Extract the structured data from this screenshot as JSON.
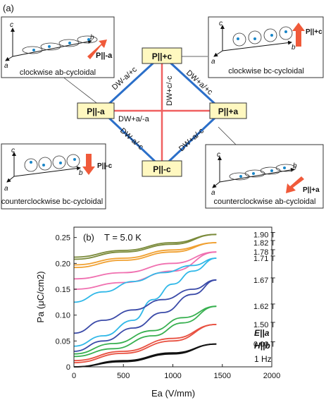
{
  "panel_a": {
    "label": "(a)",
    "nodes": {
      "top": "P||+c",
      "left": "P||-a",
      "right": "P||+a",
      "bottom": "P||-c"
    },
    "walls": {
      "ul": "DW-a/+c",
      "ur": "DW+a/+c",
      "ll": "DW-a/-c",
      "lr": "DW+a/-c",
      "vertical": "DW+c/-c",
      "horizontal": "DW+a/-a"
    },
    "insets": {
      "tl": {
        "caption": "clockwise ab-cycloidal",
        "pol": "P||-a",
        "axes": [
          "c",
          "a",
          "b"
        ]
      },
      "tr": {
        "caption": "clockwise bc-cycloidal",
        "pol": "P||+c",
        "axes": [
          "c",
          "a",
          "b"
        ]
      },
      "bl": {
        "caption": "counterclockwise  bc-cycloidal",
        "pol": "P||-c",
        "axes": [
          "c",
          "a",
          "b"
        ]
      },
      "br": {
        "caption": "counterclockwise ab-cycloidal",
        "pol": "P||+a",
        "axes": [
          "c",
          "a",
          "b"
        ]
      }
    },
    "colors": {
      "diamond": "#2b6fc9",
      "cross": "#f06060",
      "node_fill": "#fff8c0",
      "arrow": "#f05a3a",
      "spin": "#1a86c8"
    }
  },
  "panel_b": {
    "label": "(b)",
    "temperature": "T = 5.0 K",
    "conditions": [
      "E||a",
      "H||b",
      "1 Hz"
    ]
  },
  "chart_data": {
    "type": "line",
    "xlabel": "Ea (V/mm)",
    "ylabel": "Pa (μC/cm2)",
    "xlim": [
      0,
      2000
    ],
    "ylim": [
      0,
      0.27
    ],
    "xticks": [
      0,
      500,
      1000,
      1500,
      2000
    ],
    "yticks": [
      0,
      0.05,
      0.1,
      0.15,
      0.2,
      0.25
    ],
    "grid": false,
    "series": [
      {
        "name": "1.90 T",
        "color": "#7a8a3a",
        "up": [
          [
            0,
            0.212
          ],
          [
            500,
            0.225
          ],
          [
            1000,
            0.24
          ],
          [
            1440,
            0.256
          ]
        ],
        "down": [
          [
            0,
            0.208
          ],
          [
            500,
            0.222
          ],
          [
            1000,
            0.237
          ],
          [
            1440,
            0.256
          ]
        ]
      },
      {
        "name": "1.82 T",
        "color": "#f0a030",
        "up": [
          [
            0,
            0.197
          ],
          [
            500,
            0.21
          ],
          [
            1000,
            0.226
          ],
          [
            1440,
            0.24
          ]
        ],
        "down": [
          [
            0,
            0.192
          ],
          [
            500,
            0.206
          ],
          [
            1000,
            0.222
          ],
          [
            1440,
            0.24
          ]
        ]
      },
      {
        "name": "1.78 T",
        "color": "#f070b0",
        "up": [
          [
            0,
            0.17
          ],
          [
            500,
            0.182
          ],
          [
            1000,
            0.2
          ],
          [
            1440,
            0.222
          ]
        ],
        "down": [
          [
            0,
            0.15
          ],
          [
            500,
            0.163
          ],
          [
            1000,
            0.185
          ],
          [
            1440,
            0.222
          ]
        ]
      },
      {
        "name": "1.71 T",
        "color": "#30b8e8",
        "up": [
          [
            0,
            0.04
          ],
          [
            300,
            0.06
          ],
          [
            600,
            0.09
          ],
          [
            800,
            0.13
          ],
          [
            1000,
            0.16
          ],
          [
            1200,
            0.185
          ],
          [
            1440,
            0.21
          ]
        ],
        "down": [
          [
            0,
            0.125
          ],
          [
            300,
            0.145
          ],
          [
            600,
            0.165
          ],
          [
            900,
            0.182
          ],
          [
            1200,
            0.196
          ],
          [
            1440,
            0.21
          ]
        ]
      },
      {
        "name": "1.67 T",
        "color": "#3a4aa8",
        "up": [
          [
            0,
            0.065
          ],
          [
            300,
            0.09
          ],
          [
            600,
            0.11
          ],
          [
            900,
            0.13
          ],
          [
            1200,
            0.15
          ],
          [
            1440,
            0.168
          ]
        ],
        "down": [
          [
            0,
            0.03
          ],
          [
            300,
            0.05
          ],
          [
            600,
            0.075
          ],
          [
            900,
            0.105
          ],
          [
            1200,
            0.14
          ],
          [
            1440,
            0.168
          ]
        ]
      },
      {
        "name": "1.62 T",
        "color": "#38b050",
        "up": [
          [
            0,
            0.025
          ],
          [
            400,
            0.045
          ],
          [
            800,
            0.07
          ],
          [
            1100,
            0.095
          ],
          [
            1440,
            0.117
          ]
        ],
        "down": [
          [
            0,
            0.02
          ],
          [
            400,
            0.035
          ],
          [
            800,
            0.06
          ],
          [
            1100,
            0.085
          ],
          [
            1440,
            0.117
          ]
        ]
      },
      {
        "name": "1.50 T",
        "color": "#e85040",
        "up": [
          [
            0,
            0.012
          ],
          [
            500,
            0.03
          ],
          [
            1000,
            0.055
          ],
          [
            1440,
            0.082
          ]
        ],
        "down": [
          [
            0,
            0.008
          ],
          [
            500,
            0.026
          ],
          [
            1000,
            0.05
          ],
          [
            1440,
            0.082
          ]
        ]
      },
      {
        "name": "0.00 T",
        "color": "#111111",
        "up": [
          [
            0,
            0.0
          ],
          [
            500,
            0.012
          ],
          [
            1000,
            0.027
          ],
          [
            1440,
            0.044
          ]
        ],
        "down": [
          [
            0,
            0.0
          ],
          [
            500,
            0.01
          ],
          [
            1000,
            0.025
          ],
          [
            1440,
            0.044
          ]
        ]
      }
    ]
  }
}
